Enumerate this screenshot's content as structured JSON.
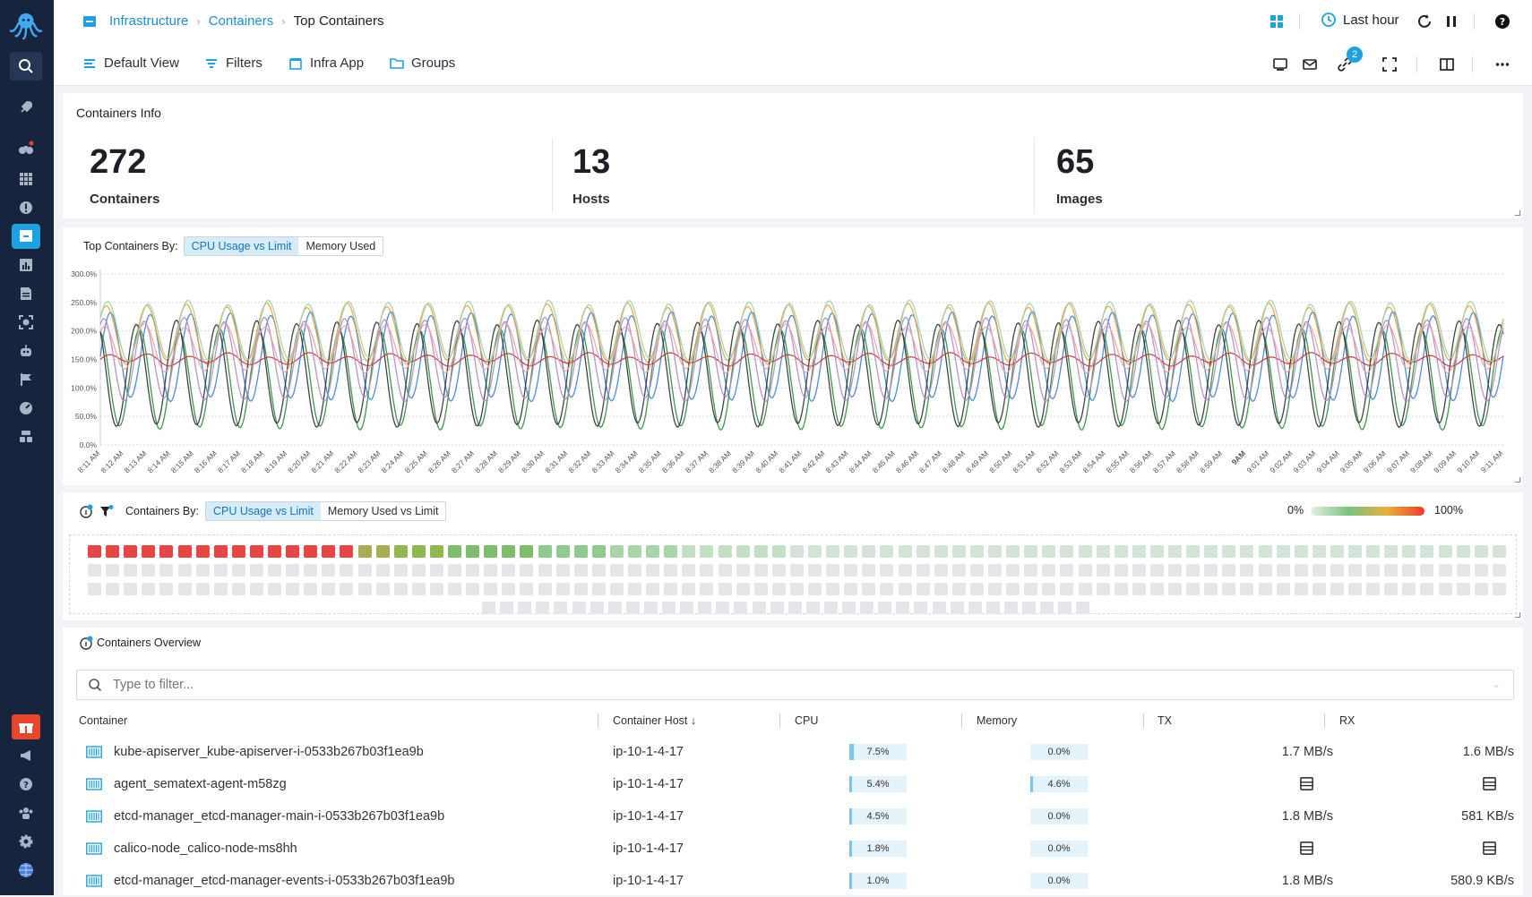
{
  "breadcrumb": {
    "items": [
      "Infrastructure",
      "Containers",
      "Top Containers"
    ]
  },
  "toolbar": {
    "default_view": "Default View",
    "filters": "Filters",
    "infra_app": "Infra App",
    "groups": "Groups",
    "time_range": "Last hour",
    "share_badge": "2"
  },
  "info": {
    "title": "Containers Info",
    "stats": [
      {
        "value": "272",
        "label": "Containers"
      },
      {
        "value": "13",
        "label": "Hosts"
      },
      {
        "value": "65",
        "label": "Images"
      }
    ]
  },
  "top_chart": {
    "label": "Top Containers By:",
    "toggle": [
      "CPU Usage vs Limit",
      "Memory Used"
    ],
    "active": "CPU Usage vs Limit"
  },
  "chart_data": {
    "type": "line",
    "title": "",
    "y_ticks": [
      "0.0%",
      "50.0%",
      "100.0%",
      "150.0%",
      "200.0%",
      "250.0%",
      "300.0%"
    ],
    "ylim": [
      0,
      300
    ],
    "x_ticks": [
      "8:11 AM",
      "8:12 AM",
      "8:13 AM",
      "8:14 AM",
      "8:15 AM",
      "8:16 AM",
      "8:17 AM",
      "8:18 AM",
      "8:19 AM",
      "8:20 AM",
      "8:21 AM",
      "8:22 AM",
      "8:23 AM",
      "8:24 AM",
      "8:25 AM",
      "8:26 AM",
      "8:27 AM",
      "8:28 AM",
      "8:29 AM",
      "8:30 AM",
      "8:31 AM",
      "8:32 AM",
      "8:33 AM",
      "8:34 AM",
      "8:35 AM",
      "8:36 AM",
      "8:37 AM",
      "8:38 AM",
      "8:39 AM",
      "8:40 AM",
      "8:41 AM",
      "8:42 AM",
      "8:43 AM",
      "8:44 AM",
      "8:45 AM",
      "8:46 AM",
      "8:47 AM",
      "8:48 AM",
      "8:49 AM",
      "8:50 AM",
      "8:51 AM",
      "8:52 AM",
      "8:53 AM",
      "8:54 AM",
      "8:55 AM",
      "8:56 AM",
      "8:57 AM",
      "8:58 AM",
      "8:59 AM",
      "9AM",
      "9:01 AM",
      "9:02 AM",
      "9:03 AM",
      "9:04 AM",
      "9:05 AM",
      "9:06 AM",
      "9:07 AM",
      "9:08 AM",
      "9:09 AM",
      "9:10 AM",
      "9:11 AM"
    ],
    "grid": true,
    "series": [
      {
        "color": "#3b7fd9",
        "base": 155,
        "amp": 75,
        "phase": 0.0
      },
      {
        "color": "#e8a23a",
        "base": 195,
        "amp": 50,
        "phase": 0.6
      },
      {
        "color": "#2e8b3a",
        "base": 115,
        "amp": 85,
        "phase": 1.7
      },
      {
        "color": "#2a2f36",
        "base": 125,
        "amp": 90,
        "phase": 2.2
      },
      {
        "color": "#cc3333",
        "base": 150,
        "amp": 8,
        "phase": 0.3
      },
      {
        "color": "#b08ac8",
        "base": 150,
        "amp": 70,
        "phase": 1.0
      },
      {
        "color": "#f0a0a0",
        "base": 170,
        "amp": 40,
        "phase": 0.9
      },
      {
        "color": "#9fd2a8",
        "base": 200,
        "amp": 50,
        "phase": 0.4
      }
    ]
  },
  "heatmap": {
    "label": "Containers By:",
    "toggle": [
      "CPU Usage vs Limit",
      "Memory Used vs Limit"
    ],
    "active": "CPU Usage vs Limit",
    "legend_min": "0%",
    "legend_max": "100%"
  },
  "overview": {
    "title": "Containers Overview",
    "filter_placeholder": "Type to filter...",
    "columns": [
      "Container",
      "Container Host ↓",
      "CPU",
      "Memory",
      "TX",
      "RX"
    ],
    "rows": [
      {
        "container": "kube-apiserver_kube-apiserver-i-0533b267b03f1ea9b",
        "host": "ip-10-1-4-17",
        "cpu": "7.5%",
        "cpu_v": 7.5,
        "mem": "0.0%",
        "mem_v": 0,
        "tx": "1.7 MB/s",
        "rx": "1.6 MB/s"
      },
      {
        "container": "agent_sematext-agent-m58zg",
        "host": "ip-10-1-4-17",
        "cpu": "5.4%",
        "cpu_v": 5.4,
        "mem": "4.6%",
        "mem_v": 4.6,
        "tx": "",
        "rx": ""
      },
      {
        "container": "etcd-manager_etcd-manager-main-i-0533b267b03f1ea9b",
        "host": "ip-10-1-4-17",
        "cpu": "4.5%",
        "cpu_v": 4.5,
        "mem": "0.0%",
        "mem_v": 0,
        "tx": "1.8 MB/s",
        "rx": "581 KB/s"
      },
      {
        "container": "calico-node_calico-node-ms8hh",
        "host": "ip-10-1-4-17",
        "cpu": "1.8%",
        "cpu_v": 1.8,
        "mem": "0.0%",
        "mem_v": 0,
        "tx": "",
        "rx": ""
      },
      {
        "container": "etcd-manager_etcd-manager-events-i-0533b267b03f1ea9b",
        "host": "ip-10-1-4-17",
        "cpu": "1.0%",
        "cpu_v": 1.0,
        "mem": "0.0%",
        "mem_v": 0,
        "tx": "1.8 MB/s",
        "rx": "580.9 KB/s"
      }
    ]
  }
}
